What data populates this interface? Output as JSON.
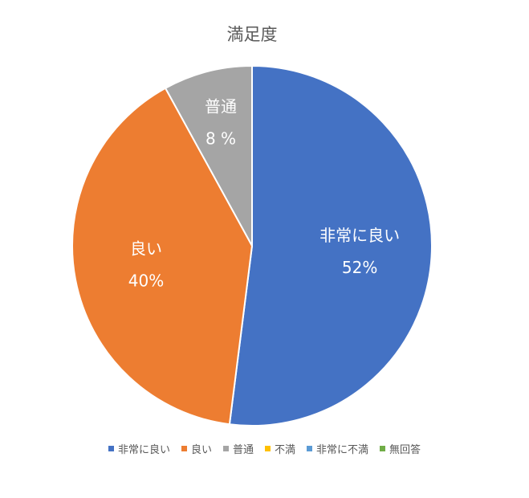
{
  "chart_data": {
    "type": "pie",
    "title": "満足度",
    "categories": [
      "非常に良い",
      "良い",
      "普通",
      "不満",
      "非常に不満",
      "無回答"
    ],
    "values": [
      52,
      40,
      8,
      0,
      0,
      0
    ],
    "value_labels": [
      "52%",
      "40%",
      "8 %",
      null,
      null,
      null
    ],
    "colors": [
      "#4472c4",
      "#ed7d31",
      "#a5a5a5",
      "#ffc000",
      "#5b9bd5",
      "#70ad47"
    ],
    "legend": "bottom"
  }
}
